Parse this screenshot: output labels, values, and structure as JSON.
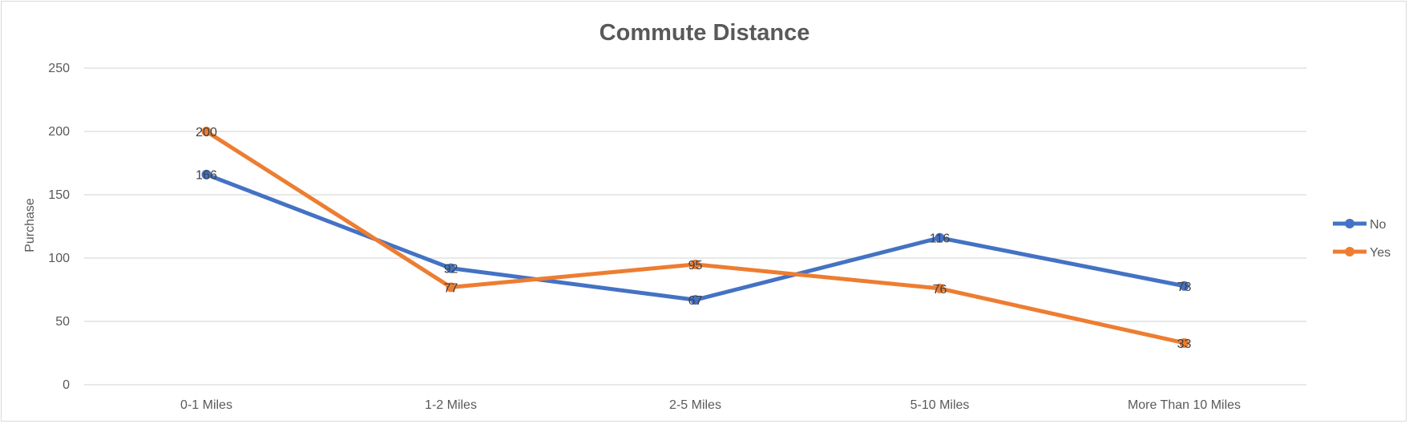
{
  "chart_data": {
    "type": "line",
    "title": "Commute Distance",
    "xlabel": "",
    "ylabel": "Purchase",
    "ylim": [
      0,
      250
    ],
    "yticks": [
      0,
      50,
      100,
      150,
      200,
      250
    ],
    "grid": true,
    "legend_position": "right",
    "categories": [
      "0-1 Miles",
      "1-2 Miles",
      "2-5 Miles",
      "5-10 Miles",
      "More Than 10 Miles"
    ],
    "series": [
      {
        "name": "No",
        "color": "#4472c4",
        "values": [
          166,
          92,
          67,
          116,
          78
        ]
      },
      {
        "name": "Yes",
        "color": "#ed7d31",
        "values": [
          200,
          77,
          95,
          76,
          33
        ]
      }
    ]
  }
}
